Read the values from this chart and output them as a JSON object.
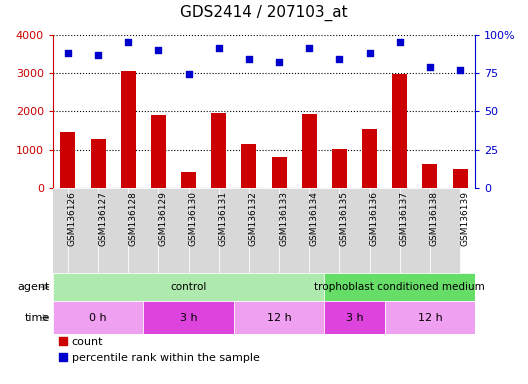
{
  "title": "GDS2414 / 207103_at",
  "samples": [
    "GSM136126",
    "GSM136127",
    "GSM136128",
    "GSM136129",
    "GSM136130",
    "GSM136131",
    "GSM136132",
    "GSM136133",
    "GSM136134",
    "GSM136135",
    "GSM136136",
    "GSM136137",
    "GSM136138",
    "GSM136139"
  ],
  "counts": [
    1470,
    1280,
    3050,
    1900,
    430,
    1960,
    1160,
    820,
    1940,
    1020,
    1550,
    2980,
    640,
    500
  ],
  "percentile_ranks": [
    88,
    87,
    95,
    90,
    74,
    91,
    84,
    82,
    91,
    84,
    88,
    95,
    79,
    77
  ],
  "bar_color": "#CC0000",
  "dot_color": "#0000CC",
  "ylim_left": [
    0,
    4000
  ],
  "ylim_right": [
    0,
    100
  ],
  "yticks_left": [
    0,
    1000,
    2000,
    3000,
    4000
  ],
  "yticks_right": [
    0,
    25,
    50,
    75,
    100
  ],
  "agent_groups": [
    {
      "label": "control",
      "start": 0,
      "end": 9,
      "color": "#aeeaae"
    },
    {
      "label": "trophoblast conditioned medium",
      "start": 9,
      "end": 14,
      "color": "#66dd66"
    }
  ],
  "time_groups": [
    {
      "label": "0 h",
      "start": 0,
      "end": 3,
      "color": "#f0a0f0"
    },
    {
      "label": "3 h",
      "start": 3,
      "end": 6,
      "color": "#dd44dd"
    },
    {
      "label": "12 h",
      "start": 6,
      "end": 9,
      "color": "#f0a0f0"
    },
    {
      "label": "3 h",
      "start": 9,
      "end": 11,
      "color": "#dd44dd"
    },
    {
      "label": "12 h",
      "start": 11,
      "end": 14,
      "color": "#f0a0f0"
    }
  ],
  "legend_items": [
    {
      "label": "count",
      "color": "#CC0000",
      "marker": "s"
    },
    {
      "label": "percentile rank within the sample",
      "color": "#0000CC",
      "marker": "s"
    }
  ],
  "grid_color": "#000000",
  "bg_color": "#FFFFFF",
  "left_axis_color": "#CC0000",
  "right_axis_color": "#0000CC",
  "xticklabel_bg": "#D8D8D8",
  "xticklabel_fontsize": 6.5,
  "bar_width": 0.5
}
